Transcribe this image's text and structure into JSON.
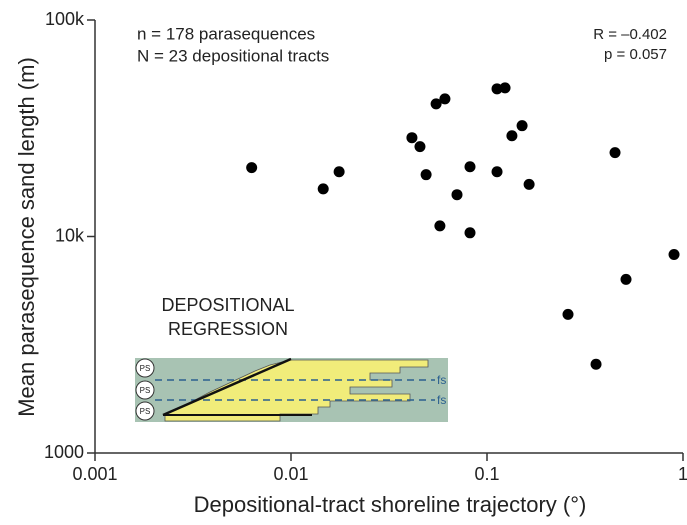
{
  "chart_data": {
    "type": "scatter",
    "x_label": "Depositional-tract shoreline trajectory (°)",
    "y_label": "Mean parasequence sand length (m)",
    "annotations": [
      "n = 178 parasequences",
      "N = 23 depositional tracts",
      "R = –0.402",
      "p = 0.057"
    ],
    "inset": {
      "title": [
        "DEPOSITIONAL",
        "REGRESSION"
      ],
      "ps_labels": [
        "PS",
        "PS",
        "PS"
      ],
      "fs_labels": [
        "fs",
        "fs"
      ]
    },
    "x": [
      0.0063,
      0.0146,
      0.0176,
      0.0414,
      0.0455,
      0.0489,
      0.055,
      0.061,
      0.0703,
      0.0819,
      0.0575,
      0.0819,
      0.1125,
      0.1236,
      0.134,
      0.151,
      0.1125,
      0.164,
      0.45,
      0.9,
      0.512,
      0.259,
      0.36
    ],
    "values": [
      20800,
      16600,
      19900,
      28600,
      26000,
      19300,
      41000,
      43200,
      15600,
      21000,
      11200,
      10400,
      48100,
      48600,
      29200,
      32500,
      19900,
      17400,
      24400,
      8260,
      6340,
      4370,
      2570
    ],
    "color": "#000000",
    "xscale": "log",
    "yscale": "log",
    "xlim": [
      0.001,
      1
    ],
    "ylim": [
      1000,
      100000
    ],
    "xticks": [
      0.001,
      0.01,
      0.1,
      1
    ],
    "yticks": [
      1000,
      {
        "value": 10000,
        "label": "10k"
      },
      {
        "value": 100000,
        "label": "100k"
      }
    ]
  }
}
